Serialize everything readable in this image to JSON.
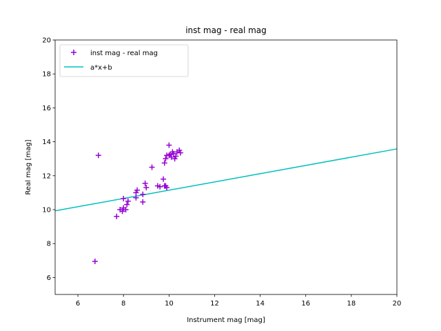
{
  "chart_data": {
    "type": "scatter",
    "title": "inst mag - real mag",
    "xlabel": "Instrument mag [mag]",
    "ylabel": "Real mag [mag]",
    "xlim": [
      5,
      20
    ],
    "ylim": [
      5,
      20
    ],
    "xticks": [
      6,
      8,
      10,
      12,
      14,
      16,
      18,
      20
    ],
    "yticks": [
      6,
      8,
      10,
      12,
      14,
      16,
      18,
      20
    ],
    "legend_position": "upper-left",
    "grid": false,
    "series": [
      {
        "name": "inst mag - real mag",
        "kind": "scatter",
        "marker": "+",
        "color": "#9400d3",
        "points": [
          [
            6.75,
            6.95
          ],
          [
            6.9,
            13.2
          ],
          [
            7.7,
            9.6
          ],
          [
            7.85,
            10.0
          ],
          [
            7.95,
            9.9
          ],
          [
            8.0,
            10.1
          ],
          [
            8.0,
            10.65
          ],
          [
            8.1,
            10.0
          ],
          [
            8.15,
            10.3
          ],
          [
            8.2,
            10.5
          ],
          [
            8.55,
            10.7
          ],
          [
            8.55,
            11.0
          ],
          [
            8.6,
            11.15
          ],
          [
            8.85,
            10.9
          ],
          [
            8.85,
            10.45
          ],
          [
            8.95,
            11.55
          ],
          [
            9.0,
            11.3
          ],
          [
            9.25,
            12.5
          ],
          [
            9.5,
            11.4
          ],
          [
            9.6,
            11.35
          ],
          [
            9.75,
            11.8
          ],
          [
            9.8,
            11.4
          ],
          [
            9.8,
            12.75
          ],
          [
            9.85,
            11.4
          ],
          [
            9.9,
            11.3
          ],
          [
            9.85,
            13.0
          ],
          [
            9.9,
            13.2
          ],
          [
            10.0,
            13.2
          ],
          [
            10.0,
            13.8
          ],
          [
            10.05,
            13.25
          ],
          [
            10.1,
            13.1
          ],
          [
            10.15,
            13.4
          ],
          [
            10.2,
            13.3
          ],
          [
            10.25,
            13.0
          ],
          [
            10.3,
            13.15
          ],
          [
            10.35,
            13.4
          ],
          [
            10.45,
            13.5
          ],
          [
            10.5,
            13.35
          ]
        ]
      },
      {
        "name": "a*x+b",
        "kind": "line",
        "color": "#00bfbf",
        "points": [
          [
            5,
            9.93
          ],
          [
            20,
            13.58
          ]
        ]
      }
    ]
  }
}
